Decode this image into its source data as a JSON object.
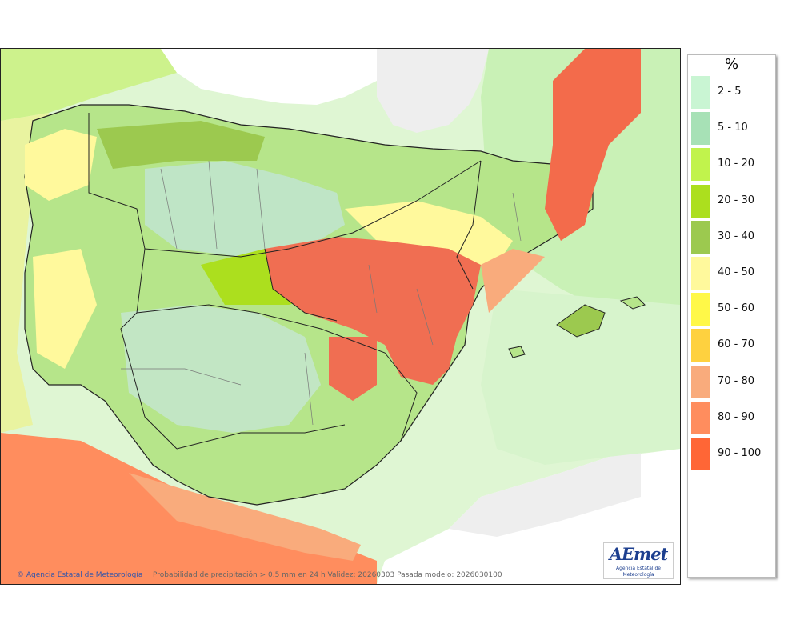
{
  "map": {
    "credit": "Agencia Estatal de Meteorología",
    "caption": "Probabilidad de precipitación > 0.5 mm en 24 h Validez: 20260303 Pasada modelo: 2026030100",
    "logo_text": "AEmet",
    "logo_subtitle": "Agencia Estatal de Meteorología",
    "colors": {
      "sea_base": "#dff6d3",
      "foreign_land": "#eeeeee",
      "border_line": "#222222",
      "region_line": "#777777"
    }
  },
  "legend": {
    "title": "%",
    "items": [
      {
        "label": "2 - 5",
        "color": "#c9f5d3"
      },
      {
        "label": "5 - 10",
        "color": "#a7e1b6"
      },
      {
        "label": "10 - 20",
        "color": "#c1f34c"
      },
      {
        "label": "20 - 30",
        "color": "#acdf1e"
      },
      {
        "label": "30 - 40",
        "color": "#9cc94f"
      },
      {
        "label": "40 - 50",
        "color": "#fff99c"
      },
      {
        "label": "50 - 60",
        "color": "#fff848"
      },
      {
        "label": "60 - 70",
        "color": "#fed13f"
      },
      {
        "label": "70 - 80",
        "color": "#f9ab7c"
      },
      {
        "label": "80 - 90",
        "color": "#ff8d5e"
      },
      {
        "label": "90 - 100",
        "color": "#ff6636"
      }
    ]
  }
}
